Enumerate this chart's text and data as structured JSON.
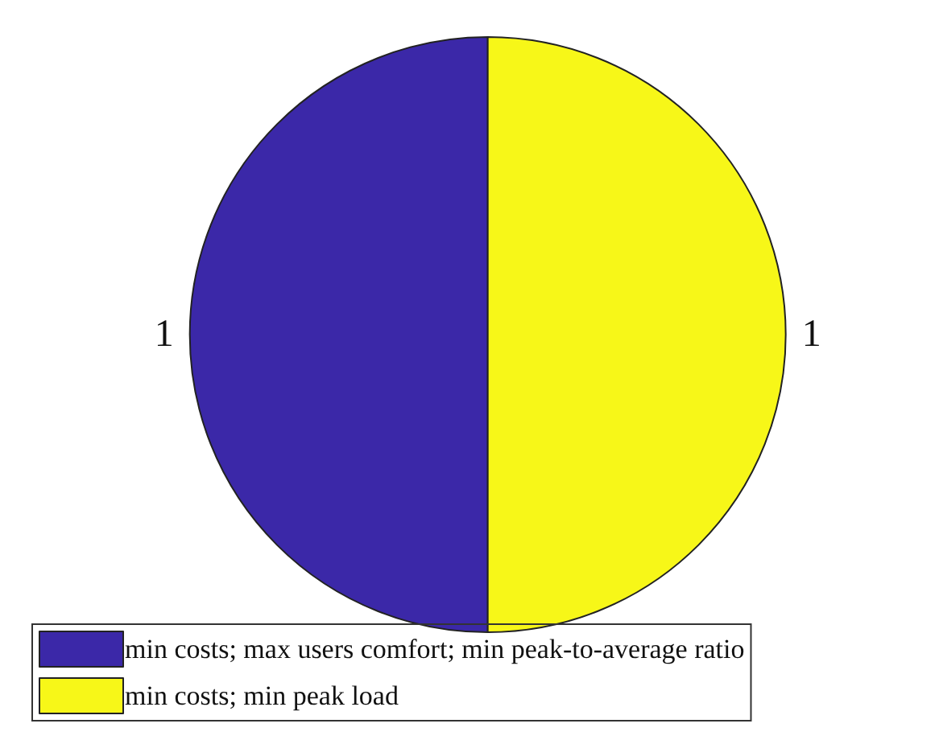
{
  "chart_data": {
    "type": "pie",
    "categories": [
      "min costs; max users comfort; min peak-to-average ratio",
      "min costs; min peak load"
    ],
    "values": [
      1,
      1
    ],
    "colors": [
      "#3b28a8",
      "#f7f718"
    ],
    "data_labels": true,
    "legend": "bottom"
  }
}
